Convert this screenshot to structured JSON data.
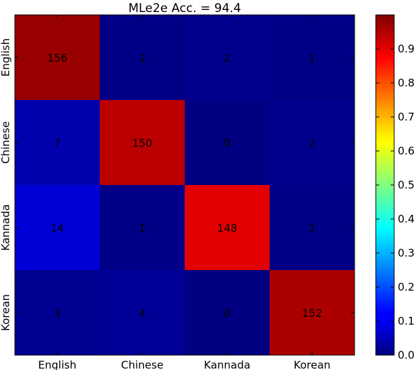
{
  "chart_data": {
    "type": "heatmap",
    "title": "MLe2e Acc. = 94.4",
    "xlabel": "",
    "ylabel": "",
    "x_categories": [
      "English",
      "Chinese",
      "Kannada",
      "Korean"
    ],
    "y_categories": [
      "English",
      "Chinese",
      "Kannada",
      "Korean"
    ],
    "values": [
      [
        156,
        1,
        2,
        1
      ],
      [
        7,
        150,
        0,
        2
      ],
      [
        14,
        1,
        148,
        1
      ],
      [
        3,
        4,
        0,
        152
      ]
    ],
    "normalized_values": [
      [
        0.975,
        0.006,
        0.013,
        0.006
      ],
      [
        0.044,
        0.943,
        0.0,
        0.013
      ],
      [
        0.085,
        0.006,
        0.902,
        0.006
      ],
      [
        0.019,
        0.025,
        0.0,
        0.956
      ]
    ],
    "colormap": "jet",
    "colorbar": {
      "range": [
        0.0,
        1.0
      ],
      "ticks": [
        "0.0",
        "0.1",
        "0.2",
        "0.3",
        "0.4",
        "0.5",
        "0.6",
        "0.7",
        "0.8",
        "0.9"
      ]
    },
    "grid": false
  }
}
